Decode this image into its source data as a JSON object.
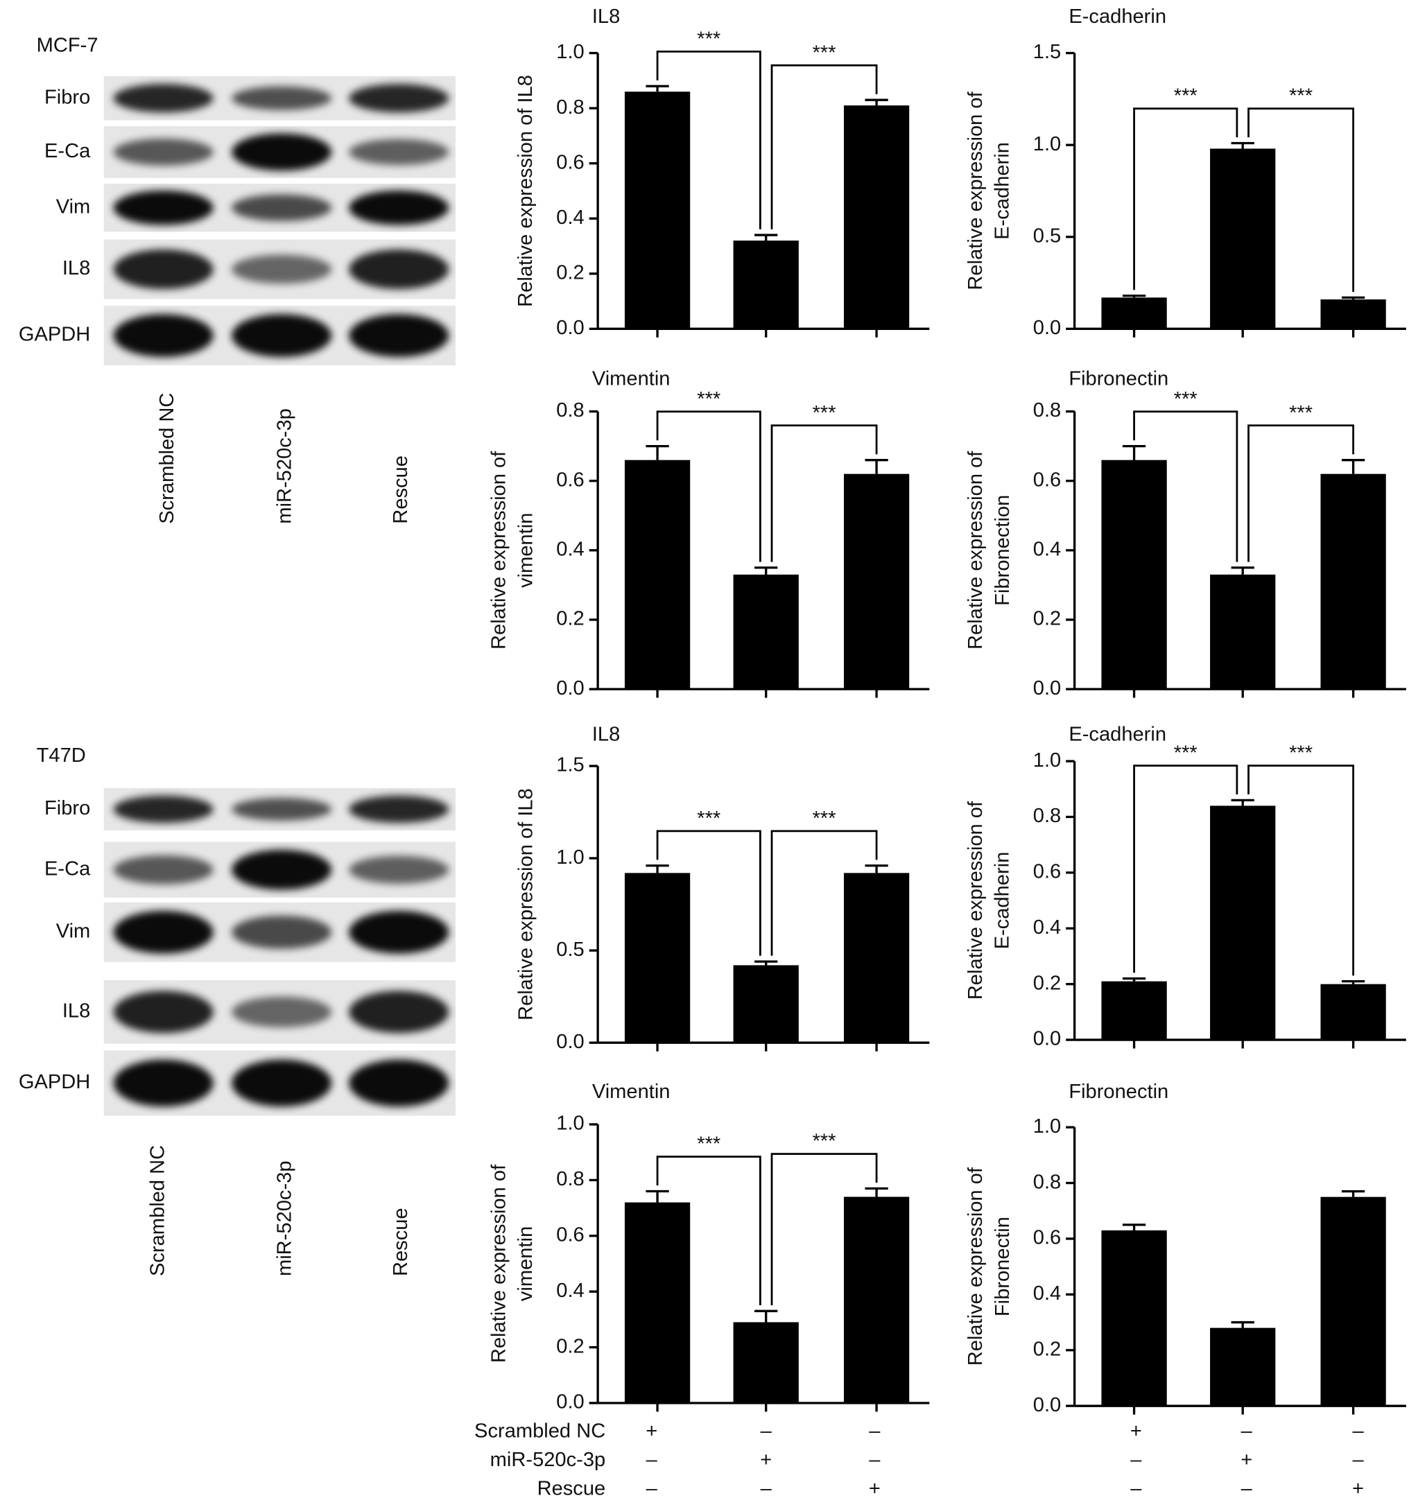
{
  "blots": [
    {
      "title": "MCF-7",
      "rows": [
        "Fibro",
        "E-Ca",
        "Vim",
        "IL8",
        "GAPDH"
      ],
      "lanes": [
        "Scrambled NC",
        "miR-520c-3p",
        "Rescue"
      ]
    },
    {
      "title": "T47D",
      "rows": [
        "Fibro",
        "E-Ca",
        "Vim",
        "IL8",
        "GAPDH"
      ],
      "lanes": [
        "Scrambled NC",
        "miR-520c-3p",
        "Rescue"
      ]
    }
  ],
  "conditions": {
    "labels": [
      "Scrambled NC",
      "miR-520c-3p",
      "Rescue"
    ],
    "signs": [
      [
        "+",
        "–",
        "–"
      ],
      [
        "–",
        "+",
        "–"
      ],
      [
        "–",
        "–",
        "+"
      ]
    ]
  },
  "chart_data": [
    {
      "type": "bar",
      "title": "IL8",
      "ylabel": [
        "Relative expression of IL8"
      ],
      "categories": [
        null,
        null,
        null
      ],
      "values": [
        0.86,
        0.32,
        0.81
      ],
      "errors": [
        0.02,
        0.02,
        0.02
      ],
      "color": "#000000",
      "ylim": [
        0,
        1
      ],
      "yticks": [
        {
          "value": 0,
          "label": "0.0"
        },
        {
          "value": 0.2,
          "label": "0.2"
        },
        {
          "value": 0.4,
          "label": "0.4"
        },
        {
          "value": 0.6,
          "label": "0.6"
        },
        {
          "value": 0.8,
          "label": "0.8"
        },
        {
          "value": 1,
          "label": "1.0"
        }
      ],
      "significance": [
        "***",
        "***"
      ]
    },
    {
      "type": "bar",
      "title": "E-cadherin",
      "ylabel": [
        "Relative expression of",
        "E-cadherin"
      ],
      "categories": [
        null,
        null,
        null
      ],
      "values": [
        0.17,
        0.98,
        0.16
      ],
      "errors": [
        0.01,
        0.03,
        0.01
      ],
      "color": "#000000",
      "ylim": [
        0,
        1.5
      ],
      "yticks": [
        {
          "value": 0,
          "label": "0.0"
        },
        0.5,
        {
          "value": 1,
          "label": "1.0"
        },
        1.5
      ],
      "significance": [
        "***",
        "***"
      ]
    },
    {
      "type": "bar",
      "title": "Vimentin",
      "ylabel": [
        "Relative expression of",
        "vimentin"
      ],
      "categories": [
        null,
        null,
        null
      ],
      "values": [
        0.66,
        0.33,
        0.62
      ],
      "errors": [
        0.04,
        0.02,
        0.04
      ],
      "color": "#000000",
      "ylim": [
        0,
        0.8
      ],
      "yticks": [
        {
          "value": 0,
          "label": "0.0"
        },
        0.2,
        0.4,
        0.6,
        0.8
      ],
      "significance": [
        "***",
        "***"
      ]
    },
    {
      "type": "bar",
      "title": "Fibronectin",
      "ylabel": [
        "Relative expression of",
        "Fibronection"
      ],
      "categories": [
        null,
        null,
        null
      ],
      "values": [
        0.66,
        0.33,
        0.62
      ],
      "errors": [
        0.04,
        0.02,
        0.04
      ],
      "color": "#000000",
      "ylim": [
        0,
        0.8
      ],
      "yticks": [
        {
          "value": 0,
          "label": "0.0"
        },
        0.2,
        0.4,
        0.6,
        0.8
      ],
      "significance": [
        "***",
        "***"
      ]
    },
    {
      "type": "bar",
      "title": "IL8",
      "ylabel": [
        "Relative expression of IL8"
      ],
      "categories": [
        null,
        null,
        null
      ],
      "values": [
        0.92,
        0.42,
        0.92
      ],
      "errors": [
        0.04,
        0.02,
        0.04
      ],
      "color": "#000000",
      "ylim": [
        0,
        1.5
      ],
      "yticks": [
        {
          "value": 0,
          "label": "0.0"
        },
        0.5,
        {
          "value": 1,
          "label": "1.0"
        },
        1.5
      ],
      "significance": [
        "***",
        "***"
      ]
    },
    {
      "type": "bar",
      "title": "E-cadherin",
      "ylabel": [
        "Relative expression of",
        "E-cadherin"
      ],
      "categories": [
        null,
        null,
        null
      ],
      "values": [
        0.21,
        0.84,
        0.2
      ],
      "errors": [
        0.01,
        0.02,
        0.01
      ],
      "color": "#000000",
      "ylim": [
        0,
        1
      ],
      "yticks": [
        {
          "value": 0,
          "label": "0.0"
        },
        0.2,
        0.4,
        0.6,
        0.8,
        {
          "value": 1,
          "label": "1.0"
        }
      ],
      "significance": [
        "***",
        "***"
      ]
    },
    {
      "type": "bar",
      "title": "Vimentin",
      "ylabel": [
        "Relative expression of",
        "vimentin"
      ],
      "categories": [
        null,
        null,
        null
      ],
      "values": [
        0.72,
        0.29,
        0.74
      ],
      "errors": [
        0.04,
        0.04,
        0.03
      ],
      "color": "#000000",
      "ylim": [
        0,
        1
      ],
      "yticks": [
        {
          "value": 0,
          "label": "0.0"
        },
        0.2,
        0.4,
        0.6,
        0.8,
        {
          "value": 1,
          "label": "1.0"
        }
      ],
      "significance": [
        "***",
        "***"
      ]
    },
    {
      "type": "bar",
      "title": "Fibronectin",
      "ylabel": [
        "Relative expression of",
        "Fibronectin"
      ],
      "categories": [
        null,
        null,
        null
      ],
      "values": [
        0.63,
        0.28,
        0.75
      ],
      "errors": [
        0.02,
        0.02,
        0.02
      ],
      "color": "#000000",
      "ylim": [
        0,
        1
      ],
      "yticks": [
        {
          "value": 0,
          "label": "0.0"
        },
        0.2,
        0.4,
        0.6,
        0.8,
        {
          "value": 1,
          "label": "1.0"
        }
      ]
    }
  ]
}
